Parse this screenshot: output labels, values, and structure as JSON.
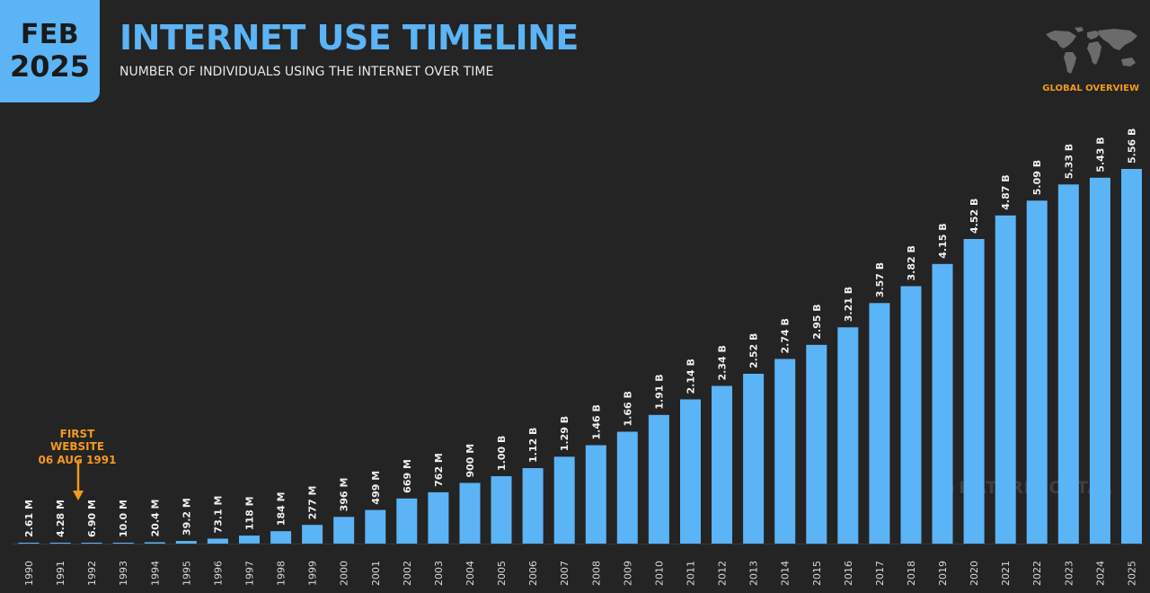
{
  "badge": {
    "month": "FEB",
    "year": "2025"
  },
  "header": {
    "title": "INTERNET USE TIMELINE",
    "subtitle": "NUMBER OF INDIVIDUALS USING THE INTERNET OVER TIME",
    "section": "GLOBAL OVERVIEW"
  },
  "watermark": "DATAREPORTAL",
  "annotation": {
    "line1": "FIRST WEBSITE",
    "line2": "06 AUG 1991"
  },
  "colors": {
    "bar": "#5bb4f5",
    "accent": "#f29a1f",
    "background": "#242424"
  },
  "chart_data": {
    "type": "bar",
    "categories": [
      "1990",
      "1991",
      "1992",
      "1993",
      "1994",
      "1995",
      "1996",
      "1997",
      "1998",
      "1999",
      "2000",
      "2001",
      "2002",
      "2003",
      "2004",
      "2005",
      "2006",
      "2007",
      "2008",
      "2009",
      "2010",
      "2011",
      "2012",
      "2013",
      "2014",
      "2015",
      "2016",
      "2017",
      "2018",
      "2019",
      "2020",
      "2021",
      "2022",
      "2023",
      "2024",
      "2025"
    ],
    "values": [
      0.00261,
      0.00428,
      0.0069,
      0.01,
      0.0204,
      0.0392,
      0.0731,
      0.118,
      0.184,
      0.277,
      0.396,
      0.499,
      0.669,
      0.762,
      0.9,
      1.0,
      1.12,
      1.29,
      1.46,
      1.66,
      1.91,
      2.14,
      2.34,
      2.52,
      2.74,
      2.95,
      3.21,
      3.57,
      3.82,
      4.15,
      4.52,
      4.87,
      5.09,
      5.33,
      5.43,
      5.56
    ],
    "value_labels": [
      "2.61 M",
      "4.28 M",
      "6.90 M",
      "10.0 M",
      "20.4 M",
      "39.2 M",
      "73.1 M",
      "118 M",
      "184 M",
      "277 M",
      "396 M",
      "499 M",
      "669 M",
      "762 M",
      "900 M",
      "1.00 B",
      "1.12 B",
      "1.29 B",
      "1.46 B",
      "1.66 B",
      "1.91 B",
      "2.14 B",
      "2.34 B",
      "2.52 B",
      "2.74 B",
      "2.95 B",
      "3.21 B",
      "3.57 B",
      "3.82 B",
      "4.15 B",
      "4.52 B",
      "4.87 B",
      "5.09 B",
      "5.33 B",
      "5.43 B",
      "5.56 B"
    ],
    "title": "INTERNET USE TIMELINE",
    "xlabel": "",
    "ylabel": "",
    "ylim": [
      0,
      5.56
    ],
    "grid": false,
    "legend": "none"
  }
}
